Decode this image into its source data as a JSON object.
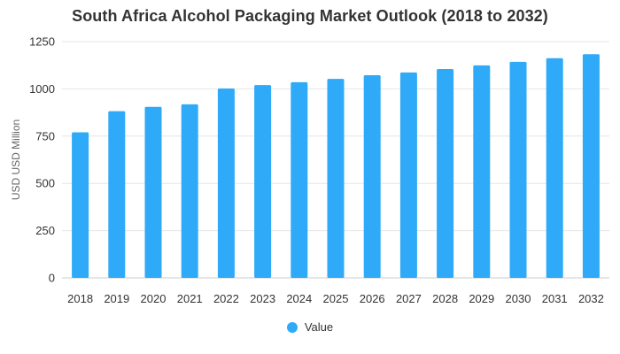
{
  "chart_data": {
    "type": "bar",
    "title": "South Africa Alcohol Packaging Market Outlook (2018 to 2032)",
    "xlabel": "",
    "ylabel": "USD USD Million",
    "categories": [
      "2018",
      "2019",
      "2020",
      "2021",
      "2022",
      "2023",
      "2024",
      "2025",
      "2026",
      "2027",
      "2028",
      "2029",
      "2030",
      "2031",
      "2032"
    ],
    "series": [
      {
        "name": "Value",
        "values": [
          770,
          882,
          905,
          918,
          1002,
          1020,
          1035,
          1053,
          1072,
          1087,
          1105,
          1124,
          1143,
          1162,
          1183
        ]
      }
    ],
    "ylim": [
      0,
      1250
    ],
    "yticks": [
      0,
      250,
      500,
      750,
      1000,
      1250
    ],
    "grid": true,
    "legend_position": "bottom-center",
    "colors": {
      "bar": "#2eaaf8",
      "grid": "#e6e6e6",
      "text": "#333333"
    }
  }
}
